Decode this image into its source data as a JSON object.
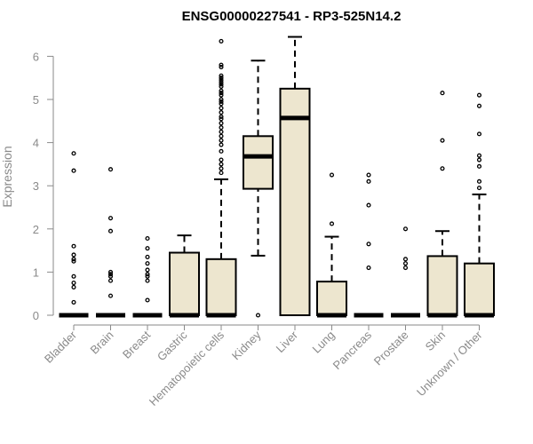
{
  "chart_data": {
    "type": "box",
    "title": "ENSG00000227541 - RP3-525N14.2",
    "xlabel": "",
    "ylabel": "Expression",
    "ylim": [
      0,
      6.5
    ],
    "yticks": [
      0,
      1,
      2,
      3,
      4,
      5,
      6
    ],
    "grid": false,
    "colors": {
      "box_fill": "#ede6cf",
      "stroke": "#000000",
      "axis": "#8a8a8a"
    },
    "categories": [
      "Bladder",
      "Brain",
      "Breast",
      "Gastric",
      "Hematopoietic cells",
      "Kidney",
      "Liver",
      "Lung",
      "Pancreas",
      "Prostate",
      "Skin",
      "Unknown / Other"
    ],
    "boxes": [
      {
        "q1": 0,
        "median": 0,
        "q3": 0,
        "whisker_low": 0,
        "whisker_high": 0,
        "outliers": [
          0.3,
          0.65,
          0.75,
          0.9,
          1.25,
          1.3,
          1.4,
          1.6,
          3.35,
          3.75
        ]
      },
      {
        "q1": 0,
        "median": 0,
        "q3": 0,
        "whisker_low": 0,
        "whisker_high": 0,
        "outliers": [
          0.45,
          0.8,
          0.9,
          0.95,
          1.0,
          1.95,
          2.25,
          3.38
        ]
      },
      {
        "q1": 0,
        "median": 0,
        "q3": 0,
        "whisker_low": 0,
        "whisker_high": 0,
        "outliers": [
          0.35,
          0.8,
          0.9,
          0.95,
          1.05,
          1.2,
          1.35,
          1.55,
          1.78
        ]
      },
      {
        "q1": 0,
        "median": 0,
        "q3": 1.45,
        "whisker_low": 0,
        "whisker_high": 1.85,
        "outliers": []
      },
      {
        "q1": 0,
        "median": 0,
        "q3": 1.3,
        "whisker_low": 0,
        "whisker_high": 3.15,
        "outliers": [
          3.3,
          3.4,
          3.5,
          3.6,
          3.8,
          3.95,
          4.05,
          4.15,
          4.25,
          4.35,
          4.45,
          4.55,
          4.6,
          4.7,
          4.8,
          4.9,
          4.95,
          5.0,
          5.1,
          5.15,
          5.2,
          5.3,
          5.35,
          5.4,
          5.45,
          5.5,
          5.55,
          5.75,
          5.8,
          6.35
        ]
      },
      {
        "q1": 2.93,
        "median": 3.68,
        "q3": 4.15,
        "whisker_low": 1.38,
        "whisker_high": 5.9,
        "outliers": [
          0
        ]
      },
      {
        "q1": 0,
        "median": 4.57,
        "q3": 5.25,
        "whisker_low": 0,
        "whisker_high": 6.45,
        "outliers": []
      },
      {
        "q1": 0,
        "median": 0,
        "q3": 0.78,
        "whisker_low": 0,
        "whisker_high": 1.82,
        "outliers": [
          2.12,
          3.25
        ]
      },
      {
        "q1": 0,
        "median": 0,
        "q3": 0,
        "whisker_low": 0,
        "whisker_high": 0,
        "outliers": [
          1.1,
          1.65,
          2.55,
          3.1,
          3.25
        ]
      },
      {
        "q1": 0,
        "median": 0,
        "q3": 0,
        "whisker_low": 0,
        "whisker_high": 0,
        "outliers": [
          1.1,
          1.2,
          1.3,
          2.0
        ]
      },
      {
        "q1": 0,
        "median": 0,
        "q3": 1.37,
        "whisker_low": 0,
        "whisker_high": 1.95,
        "outliers": [
          3.4,
          4.05,
          5.15
        ]
      },
      {
        "q1": 0,
        "median": 0,
        "q3": 1.2,
        "whisker_low": 0,
        "whisker_high": 2.8,
        "outliers": [
          2.95,
          3.1,
          3.45,
          3.6,
          3.7,
          4.2,
          4.85,
          5.1
        ]
      }
    ]
  }
}
